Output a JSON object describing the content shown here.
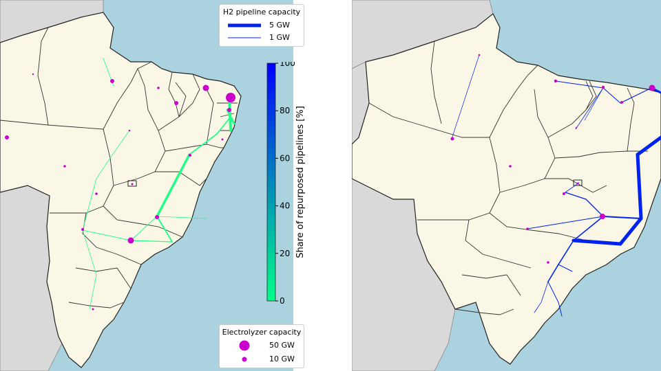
{
  "colors": {
    "ocean": "#aad3df",
    "land_brazil": "#fbf7e6",
    "land_other": "#d9d9d9",
    "border": "#222222",
    "neighbor_border": "#888888",
    "electrolyzer": "#cc00cc",
    "pipe_new": "#0022ee",
    "pipe_repurposed": "#22ff88",
    "cmap_low": "#00ff88",
    "cmap_high": "#0000ff"
  },
  "pipeline_legend": {
    "title": "H2 pipeline capacity",
    "entries": [
      {
        "label": "5 GW",
        "value_gw": 5
      },
      {
        "label": "1 GW",
        "value_gw": 1
      }
    ]
  },
  "electrolyzer_legend": {
    "title": "Electrolyzer capacity",
    "entries": [
      {
        "label": "50 GW",
        "value_gw": 50
      },
      {
        "label": "10 GW",
        "value_gw": 10
      }
    ]
  },
  "colorbar": {
    "label": "Share of repurposed pipelines [%]",
    "ticks": [
      "100",
      "80",
      "60",
      "40",
      "20",
      "0"
    ],
    "range": [
      0,
      100
    ]
  }
}
